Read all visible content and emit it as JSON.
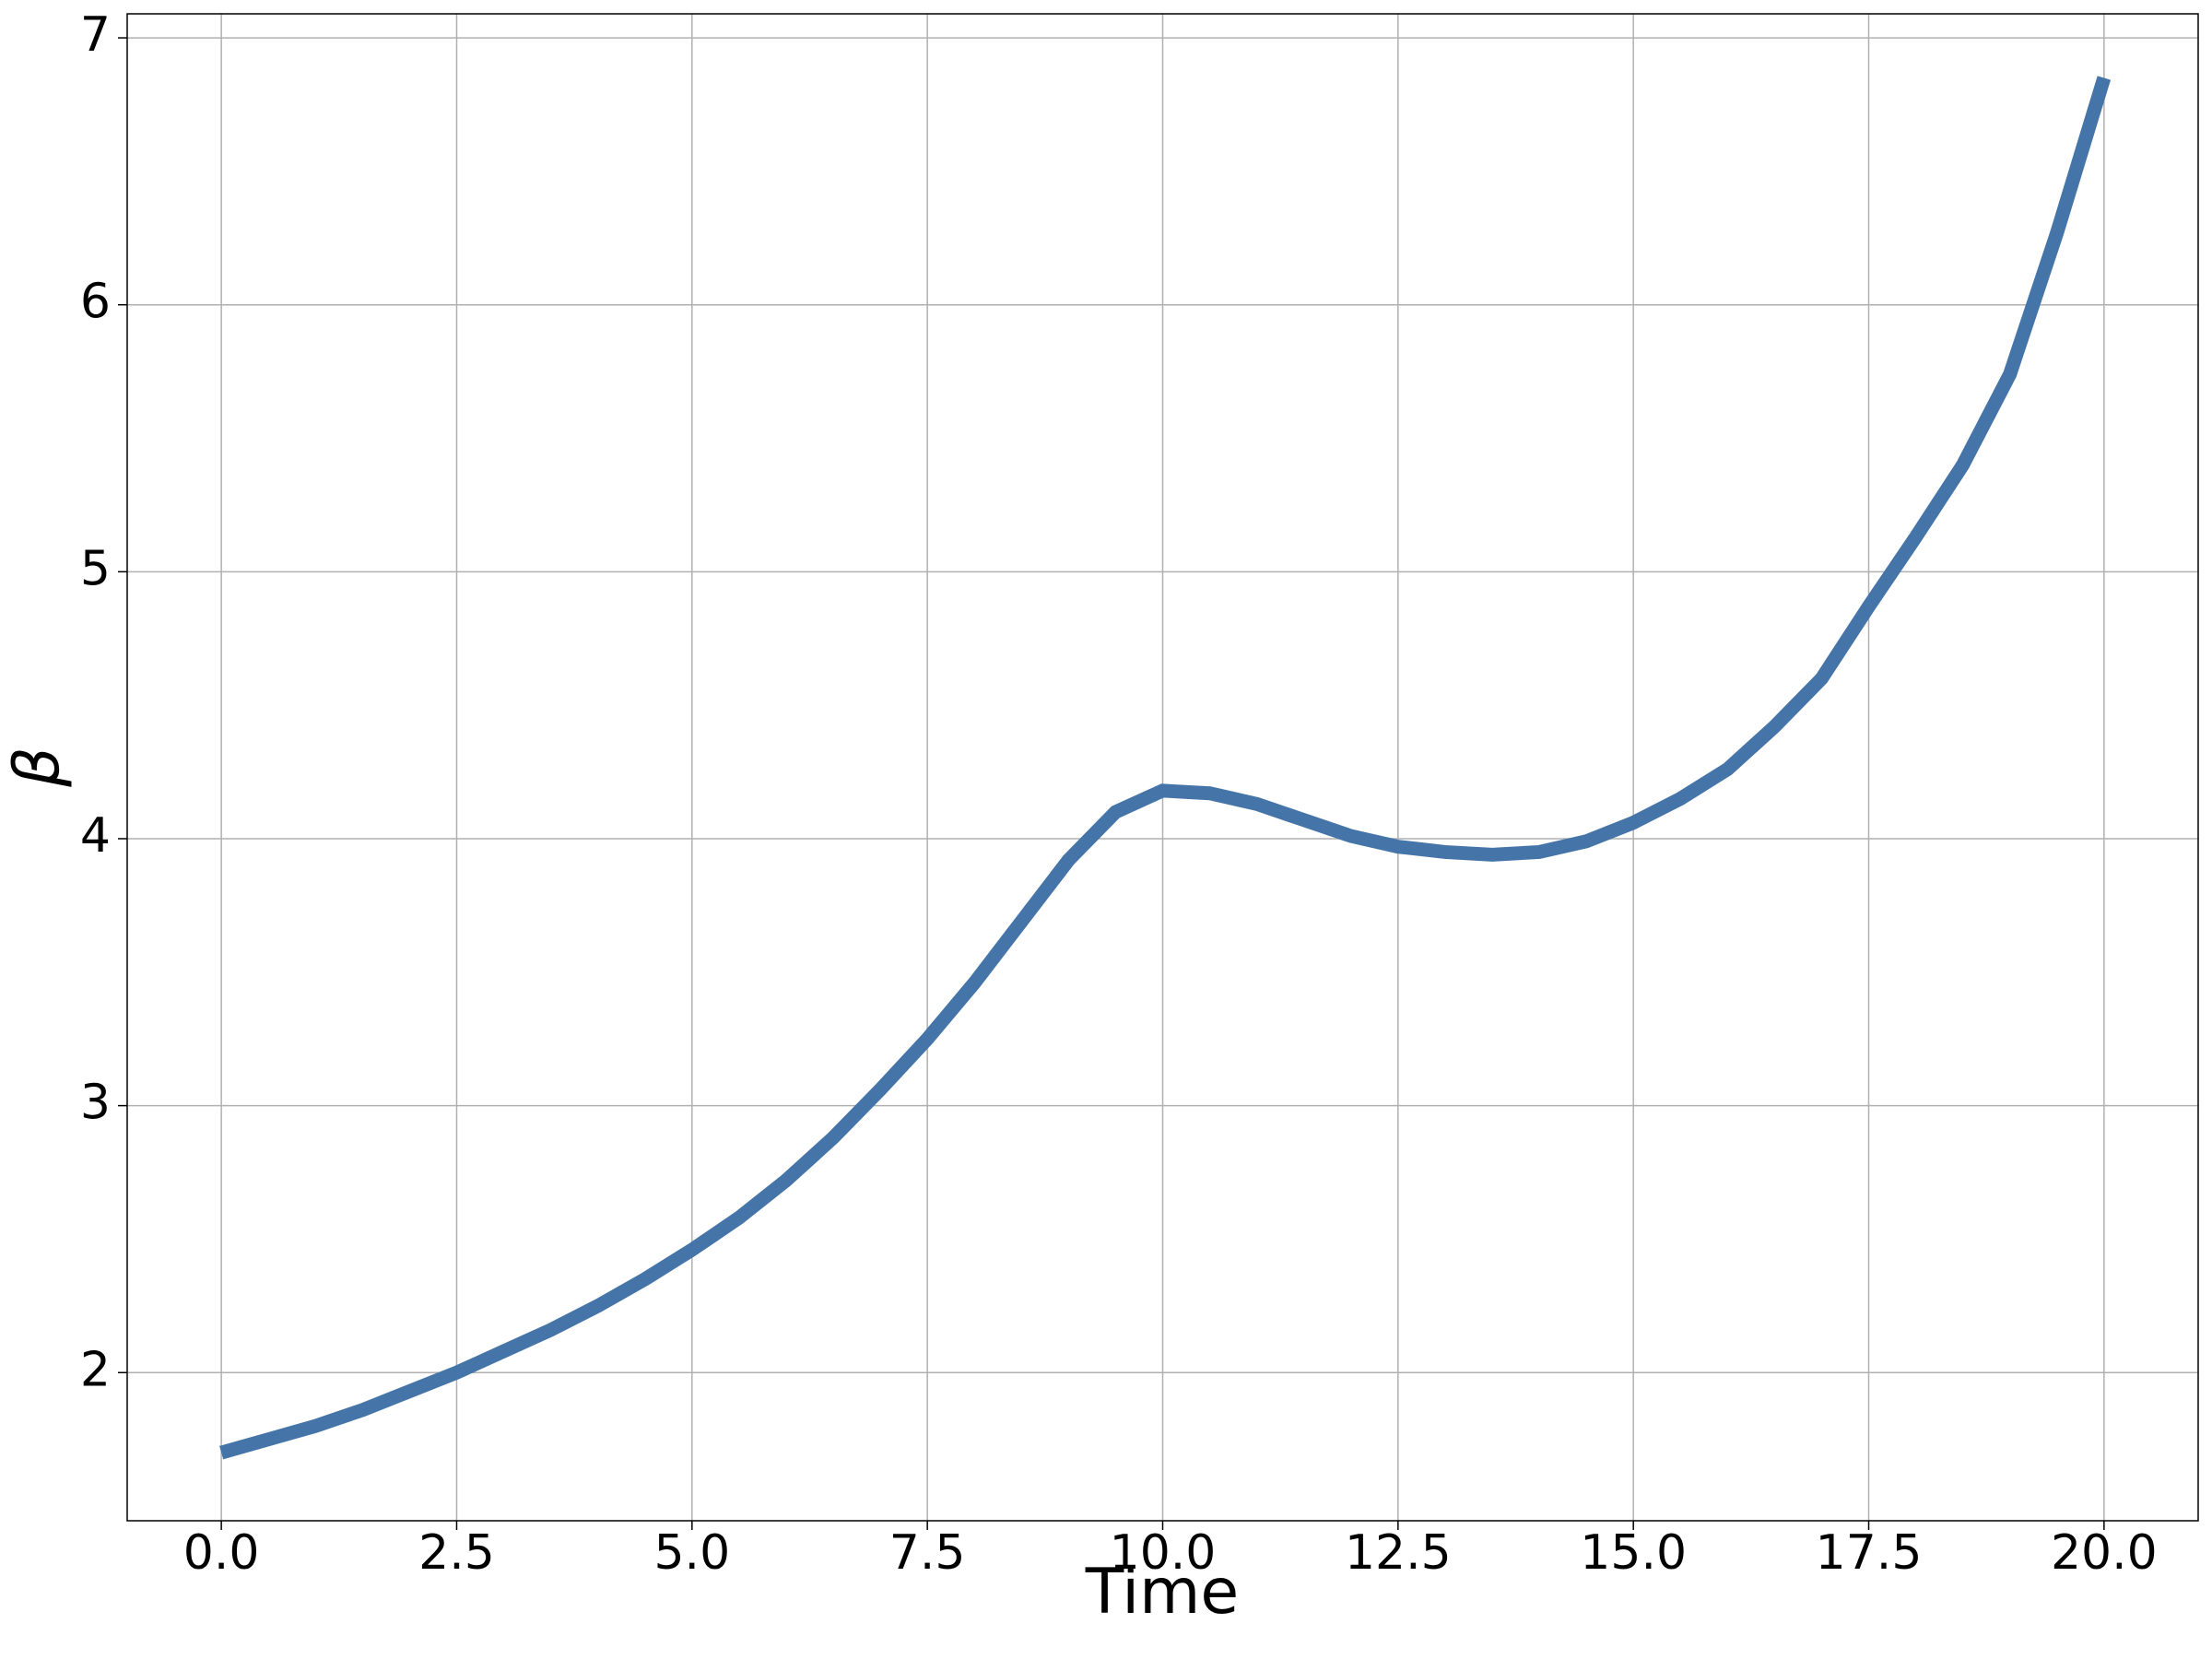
{
  "chart_data": {
    "type": "line",
    "x_label": "Time",
    "y_label": "β",
    "x": [
      0,
      0.5,
      1,
      1.5,
      2,
      2.5,
      3,
      3.5,
      4,
      4.5,
      5,
      5.5,
      6,
      6.5,
      7,
      7.5,
      8,
      8.5,
      9,
      9.5,
      10,
      10.5,
      11,
      11.5,
      12,
      12.5,
      13,
      13.5,
      14,
      14.5,
      15,
      15.5,
      16,
      16.5,
      17,
      17.5,
      18,
      18.5,
      19,
      19.5,
      20
    ],
    "series": [
      {
        "color": "#4575a8",
        "values": [
          1.7,
          1.75,
          1.8,
          1.86,
          1.93,
          2.0,
          2.08,
          2.16,
          2.25,
          2.35,
          2.46,
          2.58,
          2.72,
          2.88,
          3.06,
          3.25,
          3.46,
          3.69,
          3.92,
          4.1,
          4.18,
          4.17,
          4.13,
          4.07,
          4.01,
          3.97,
          3.95,
          3.94,
          3.95,
          3.99,
          4.06,
          4.15,
          4.26,
          4.42,
          4.6,
          4.87,
          5.13,
          5.4,
          5.74,
          6.27,
          6.85
        ]
      }
    ],
    "xlim": [
      -1,
      21
    ],
    "ylim": [
      1.445,
      7.09
    ],
    "xticks": [
      {
        "value": 0,
        "label": "0.0"
      },
      {
        "value": 2.5,
        "label": "2.5"
      },
      {
        "value": 5,
        "label": "5.0"
      },
      {
        "value": 7.5,
        "label": "7.5"
      },
      {
        "value": 10,
        "label": "10.0"
      },
      {
        "value": 12.5,
        "label": "12.5"
      },
      {
        "value": 15,
        "label": "15.0"
      },
      {
        "value": 17.5,
        "label": "17.5"
      },
      {
        "value": 20,
        "label": "20.0"
      }
    ],
    "yticks": [
      2,
      3,
      4,
      5,
      6,
      7
    ],
    "grid": true
  }
}
